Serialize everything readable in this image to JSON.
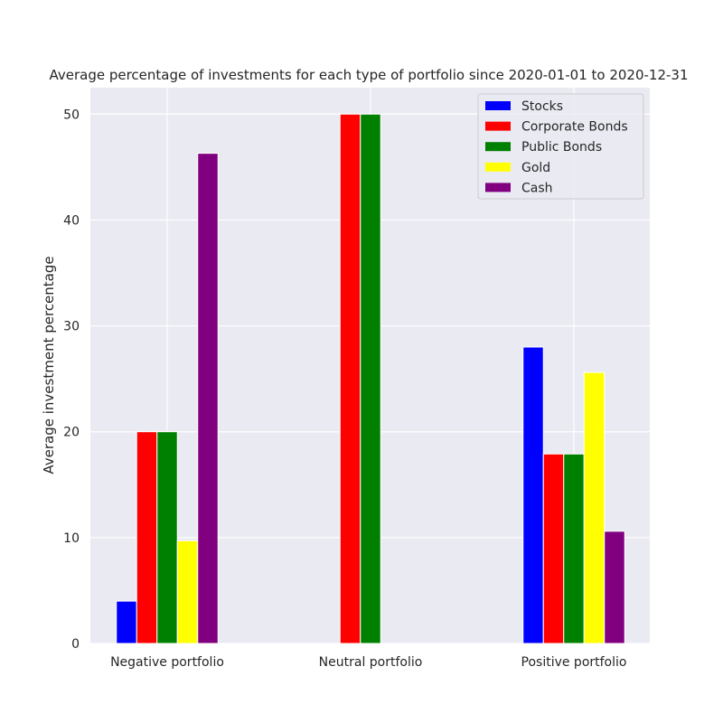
{
  "chart_data": {
    "type": "bar",
    "title": "Average percentage of investments for each type of portfolio since 2020-01-01 to 2020-12-31",
    "xlabel": "",
    "ylabel": "Average investment percentage",
    "categories": [
      "Negative portfolio",
      "Neutral portfolio",
      "Positive portfolio"
    ],
    "ylim": [
      0,
      52.5
    ],
    "yticks": [
      0,
      10,
      20,
      30,
      40,
      50
    ],
    "grid": true,
    "legend_position": "top-right",
    "series": [
      {
        "name": "Stocks",
        "color": "#0000ff",
        "values": [
          4.0,
          0,
          28.0
        ]
      },
      {
        "name": "Corporate Bonds",
        "color": "#ff0000",
        "values": [
          20.0,
          50.0,
          17.9
        ]
      },
      {
        "name": "Public Bonds",
        "color": "#008000",
        "values": [
          20.0,
          50.0,
          17.9
        ]
      },
      {
        "name": "Gold",
        "color": "#ffff00",
        "values": [
          9.7,
          0,
          25.6
        ]
      },
      {
        "name": "Cash",
        "color": "#800080",
        "values": [
          46.3,
          0,
          10.6
        ]
      }
    ]
  }
}
